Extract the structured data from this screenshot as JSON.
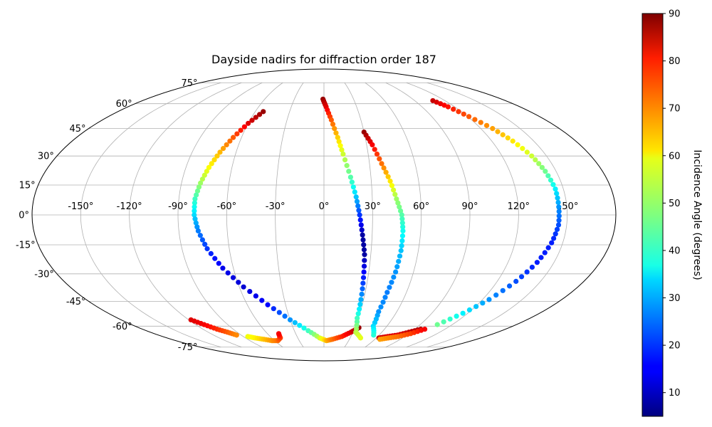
{
  "chart_data": {
    "type": "scatter",
    "projection": "mollweide",
    "title": "Dayside nadirs for diffraction order 187",
    "xlabel": "",
    "ylabel": "",
    "grid": true,
    "lon_ticks": [
      "-150°",
      "-120°",
      "-90°",
      "-60°",
      "-30°",
      "0°",
      "30°",
      "60°",
      "90°",
      "120°",
      "150°"
    ],
    "lat_ticks": [
      "-75°",
      "-60°",
      "-45°",
      "-30°",
      "-15°",
      "0°",
      "15°",
      "30°",
      "45°",
      "60°",
      "75°"
    ],
    "colorbar": {
      "label": "Incidence Angle (degrees)",
      "colormap": "jet",
      "range": [
        5,
        90
      ],
      "ticks": [
        "10",
        "20",
        "30",
        "40",
        "50",
        "60",
        "70",
        "80",
        "90"
      ]
    },
    "series": [
      {
        "points": [
          {
            "lon": -118,
            "lat": -56,
            "inc": 82
          },
          {
            "lon": -112,
            "lat": -59,
            "inc": 80
          },
          {
            "lon": -106,
            "lat": -62,
            "inc": 76
          },
          {
            "lon": -100,
            "lat": -64,
            "inc": 72
          },
          {
            "lon": -95,
            "lat": -66,
            "inc": 68
          }
        ]
      },
      {
        "points": [
          {
            "lon": -85,
            "lat": -67,
            "inc": 57
          },
          {
            "lon": -79,
            "lat": -68,
            "inc": 59
          },
          {
            "lon": -71,
            "lat": -69,
            "inc": 63
          },
          {
            "lon": -63,
            "lat": -70,
            "inc": 67
          },
          {
            "lon": -56,
            "lat": -70,
            "inc": 70
          },
          {
            "lon": -50,
            "lat": -68,
            "inc": 74
          },
          {
            "lon": -48,
            "lat": -65,
            "inc": 80
          }
        ]
      },
      {
        "points": [
          {
            "lon": -53,
            "lat": 55,
            "inc": 88
          },
          {
            "lon": -60,
            "lat": 48,
            "inc": 82
          },
          {
            "lon": -66,
            "lat": 40,
            "inc": 72
          },
          {
            "lon": -71,
            "lat": 32,
            "inc": 64
          },
          {
            "lon": -75,
            "lat": 24,
            "inc": 58
          },
          {
            "lon": -78,
            "lat": 16,
            "inc": 50
          },
          {
            "lon": -80,
            "lat": 8,
            "inc": 42
          },
          {
            "lon": -80,
            "lat": 0,
            "inc": 34
          },
          {
            "lon": -78,
            "lat": -8,
            "inc": 26
          },
          {
            "lon": -74,
            "lat": -17,
            "inc": 20
          },
          {
            "lon": -67,
            "lat": -27,
            "inc": 14
          },
          {
            "lon": -57,
            "lat": -37,
            "inc": 12
          },
          {
            "lon": -44,
            "lat": -47,
            "inc": 16
          },
          {
            "lon": -30,
            "lat": -56,
            "inc": 28
          },
          {
            "lon": -16,
            "lat": -63,
            "inc": 42
          },
          {
            "lon": -5,
            "lat": -68,
            "inc": 54
          },
          {
            "lon": 3,
            "lat": -70,
            "inc": 64
          },
          {
            "lon": 10,
            "lat": -69,
            "inc": 70
          },
          {
            "lon": 20,
            "lat": -67,
            "inc": 76
          },
          {
            "lon": 28,
            "lat": -64,
            "inc": 82
          },
          {
            "lon": 34,
            "lat": -61,
            "inc": 88
          }
        ]
      },
      {
        "points": [
          {
            "lon": -1,
            "lat": 63,
            "inc": 88
          },
          {
            "lon": 2,
            "lat": 58,
            "inc": 82
          },
          {
            "lon": 6,
            "lat": 50,
            "inc": 72
          },
          {
            "lon": 10,
            "lat": 40,
            "inc": 62
          },
          {
            "lon": 13,
            "lat": 31,
            "inc": 54
          },
          {
            "lon": 17,
            "lat": 19,
            "inc": 44
          },
          {
            "lon": 20,
            "lat": 9,
            "inc": 32
          },
          {
            "lon": 22,
            "lat": 0,
            "inc": 20
          },
          {
            "lon": 24,
            "lat": -10,
            "inc": 8
          },
          {
            "lon": 26,
            "lat": -20,
            "inc": 8
          },
          {
            "lon": 27,
            "lat": -32,
            "inc": 18
          },
          {
            "lon": 28,
            "lat": -44,
            "inc": 30
          },
          {
            "lon": 29,
            "lat": -55,
            "inc": 42
          },
          {
            "lon": 33,
            "lat": -64,
            "inc": 52
          },
          {
            "lon": 42,
            "lat": -68,
            "inc": 56
          }
        ]
      },
      {
        "points": [
          {
            "lon": 30,
            "lat": 43,
            "inc": 88
          },
          {
            "lon": 34,
            "lat": 36,
            "inc": 80
          },
          {
            "lon": 38,
            "lat": 26,
            "inc": 70
          },
          {
            "lon": 42,
            "lat": 17,
            "inc": 60
          },
          {
            "lon": 45,
            "lat": 8,
            "inc": 50
          },
          {
            "lon": 48,
            "lat": 0,
            "inc": 44
          },
          {
            "lon": 49,
            "lat": -8,
            "inc": 38
          },
          {
            "lon": 49,
            "lat": -18,
            "inc": 32
          },
          {
            "lon": 48,
            "lat": -29,
            "inc": 28
          },
          {
            "lon": 46,
            "lat": -40,
            "inc": 26
          },
          {
            "lon": 45,
            "lat": -51,
            "inc": 28
          },
          {
            "lon": 47,
            "lat": -60,
            "inc": 34
          },
          {
            "lon": 54,
            "lat": -66,
            "inc": 40
          }
        ]
      },
      {
        "points": [
          {
            "lon": 63,
            "lat": -68,
            "inc": 84
          },
          {
            "lon": 71,
            "lat": -67,
            "inc": 82
          },
          {
            "lon": 80,
            "lat": -66,
            "inc": 82
          },
          {
            "lon": 88,
            "lat": -64,
            "inc": 84
          },
          {
            "lon": 96,
            "lat": -62,
            "inc": 86
          }
        ]
      },
      {
        "points": [
          {
            "lon": 66,
            "lat": -69,
            "inc": 66
          },
          {
            "lon": 74,
            "lat": -68,
            "inc": 68
          },
          {
            "lon": 83,
            "lat": -67,
            "inc": 70
          },
          {
            "lon": 92,
            "lat": -65,
            "inc": 74
          },
          {
            "lon": 100,
            "lat": -62,
            "inc": 80
          }
        ]
      },
      {
        "points": [
          {
            "lon": 108,
            "lat": 62,
            "inc": 84
          },
          {
            "lon": 114,
            "lat": 58,
            "inc": 78
          },
          {
            "lon": 121,
            "lat": 52,
            "inc": 72
          },
          {
            "lon": 129,
            "lat": 45,
            "inc": 66
          },
          {
            "lon": 135,
            "lat": 38,
            "inc": 60
          },
          {
            "lon": 140,
            "lat": 30,
            "inc": 54
          },
          {
            "lon": 143,
            "lat": 22,
            "inc": 46
          },
          {
            "lon": 145,
            "lat": 13,
            "inc": 36
          },
          {
            "lon": 145,
            "lat": 4,
            "inc": 28
          },
          {
            "lon": 145,
            "lat": -5,
            "inc": 22
          },
          {
            "lon": 143,
            "lat": -14,
            "inc": 18
          },
          {
            "lon": 139,
            "lat": -24,
            "inc": 18
          },
          {
            "lon": 133,
            "lat": -34,
            "inc": 22
          },
          {
            "lon": 125,
            "lat": -44,
            "inc": 28
          },
          {
            "lon": 116,
            "lat": -52,
            "inc": 36
          },
          {
            "lon": 106,
            "lat": -59,
            "inc": 46
          }
        ]
      }
    ]
  }
}
